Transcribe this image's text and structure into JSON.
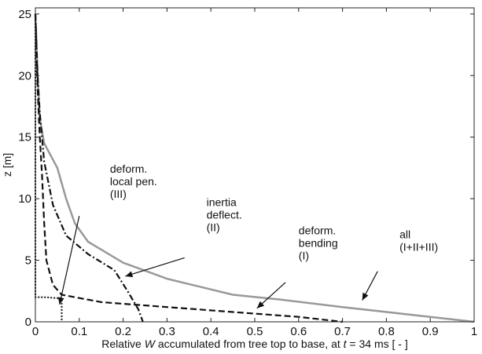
{
  "chart_data": {
    "type": "line",
    "title": "",
    "xlabel": {
      "before": "Relative ",
      "italic1": "W",
      "middle": " accumulated from tree top to base, at ",
      "italic2": "t",
      "after": " = 34 ms  [ - ]"
    },
    "ylabel": "z  [m]",
    "xlim": [
      0,
      1
    ],
    "ylim": [
      0,
      25.5
    ],
    "xticks": [
      "0",
      "0.1",
      "0.2",
      "0.3",
      "0.4",
      "0.5",
      "0.6",
      "0.7",
      "0.8",
      "0.9",
      "1"
    ],
    "yticks": [
      "0",
      "5",
      "10",
      "15",
      "20",
      "25"
    ],
    "grid": false,
    "legend": "none",
    "series": [
      {
        "key": "all",
        "color": "#999999",
        "style": "solid",
        "points": [
          [
            0.0,
            25.0
          ],
          [
            0.005,
            20.0
          ],
          [
            0.01,
            16.5
          ],
          [
            0.02,
            14.5
          ],
          [
            0.05,
            12.5
          ],
          [
            0.07,
            10.0
          ],
          [
            0.09,
            8.0
          ],
          [
            0.12,
            6.5
          ],
          [
            0.2,
            4.8
          ],
          [
            0.3,
            3.5
          ],
          [
            0.45,
            2.2
          ],
          [
            0.56,
            1.8
          ],
          [
            0.7,
            1.2
          ],
          [
            0.85,
            0.6
          ],
          [
            1.0,
            0.0
          ]
        ]
      },
      {
        "key": "bending",
        "color": "#111111",
        "style": "dashed",
        "points": [
          [
            0.0,
            25.0
          ],
          [
            0.005,
            19.0
          ],
          [
            0.01,
            15.0
          ],
          [
            0.015,
            12.0
          ],
          [
            0.02,
            8.0
          ],
          [
            0.025,
            5.0
          ],
          [
            0.04,
            3.0
          ],
          [
            0.06,
            2.2
          ],
          [
            0.15,
            1.6
          ],
          [
            0.3,
            1.2
          ],
          [
            0.45,
            0.8
          ],
          [
            0.6,
            0.4
          ],
          [
            0.7,
            0.0
          ]
        ]
      },
      {
        "key": "inertia",
        "color": "#111111",
        "style": "dashdot",
        "points": [
          [
            0.0,
            25.0
          ],
          [
            0.005,
            20.0
          ],
          [
            0.01,
            17.0
          ],
          [
            0.02,
            13.0
          ],
          [
            0.04,
            9.5
          ],
          [
            0.07,
            7.0
          ],
          [
            0.12,
            5.5
          ],
          [
            0.18,
            4.2
          ],
          [
            0.21,
            2.5
          ],
          [
            0.235,
            1.0
          ],
          [
            0.245,
            0.0
          ]
        ]
      },
      {
        "key": "local",
        "color": "#111111",
        "style": "dotted",
        "points": [
          [
            0.0,
            25.0
          ],
          [
            0.0,
            2.0
          ],
          [
            0.02,
            2.0
          ],
          [
            0.06,
            1.9
          ],
          [
            0.06,
            0.0
          ]
        ]
      }
    ],
    "annotations": [
      {
        "key": "local",
        "lines": [
          "deform.",
          "local pen.",
          "(III)"
        ],
        "text_at": [
          0.17,
          12.1
        ],
        "arrow_from": [
          0.1,
          8.6
        ],
        "arrow_to": [
          0.055,
          1.4
        ]
      },
      {
        "key": "inertia",
        "lines": [
          "inertia",
          "deflect.",
          "(II)"
        ],
        "text_at": [
          0.39,
          9.4
        ],
        "arrow_from": [
          0.34,
          5.2
        ],
        "arrow_to": [
          0.205,
          3.7
        ]
      },
      {
        "key": "bending",
        "lines": [
          "deform.",
          "bending",
          "(I)"
        ],
        "text_at": [
          0.6,
          7.1
        ],
        "arrow_from": [
          0.57,
          3.2
        ],
        "arrow_to": [
          0.505,
          1.1
        ]
      },
      {
        "key": "all",
        "lines": [
          "all",
          "(I+II+III)"
        ],
        "text_at": [
          0.83,
          6.8
        ],
        "arrow_from": [
          0.78,
          4.1
        ],
        "arrow_to": [
          0.745,
          1.75
        ]
      }
    ]
  }
}
